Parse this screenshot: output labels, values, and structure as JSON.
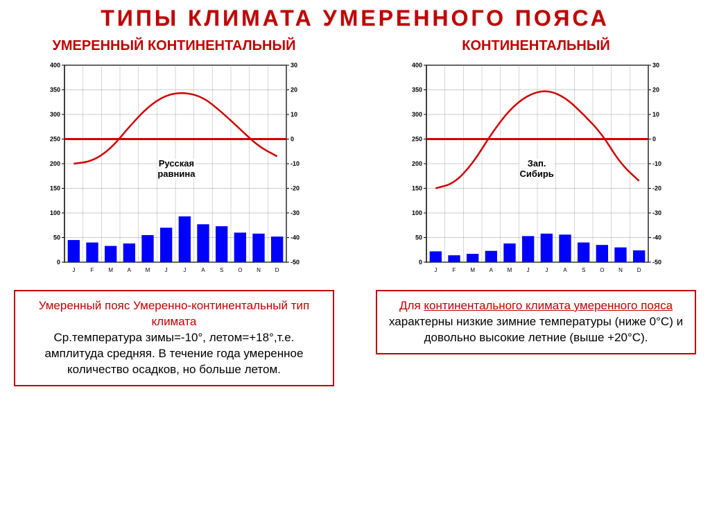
{
  "title": "ТИПЫ КЛИМАТА УМЕРЕННОГО ПОЯСА",
  "left": {
    "subtitle": "УМЕРЕННЫЙ  КОНТИНЕНТАЛЬНЫЙ",
    "chart": {
      "type": "climograph",
      "region_label": "Русская\nравнина",
      "months": [
        "J",
        "F",
        "M",
        "A",
        "M",
        "J",
        "J",
        "A",
        "S",
        "O",
        "N",
        "D"
      ],
      "precip_bars": [
        45,
        40,
        33,
        38,
        55,
        70,
        93,
        77,
        73,
        60,
        58,
        52
      ],
      "precip_bar_color": "#0000ff",
      "precip_ylim": [
        0,
        400
      ],
      "precip_ytick_step": 50,
      "temp_line": [
        -10,
        -9,
        -4,
        5,
        13,
        18,
        19,
        17,
        11,
        4,
        -3,
        -7
      ],
      "temp_line_color": "#d00000",
      "temp_ylim": [
        -50,
        30
      ],
      "temp_ytick_step": 10,
      "zero_line_color": "#d00000",
      "grid_color": "#999999",
      "axis_color": "#000000",
      "bg": "#ffffff",
      "font_size_axis": 8
    },
    "desc": {
      "title": "Умеренный  пояс Умеренно-континентальный тип климата",
      "body": "Ср.температура зимы=-10°, летом=+18°,т.е. амплитуда средняя.  В течение года умеренное количество осадков, но больше летом."
    }
  },
  "right": {
    "subtitle": "КОНТИНЕНТАЛЬНЫЙ",
    "chart": {
      "type": "climograph",
      "region_label": "Зап.\nСибирь",
      "months": [
        "J",
        "F",
        "M",
        "A",
        "M",
        "J",
        "J",
        "A",
        "S",
        "O",
        "N",
        "D"
      ],
      "precip_bars": [
        22,
        14,
        17,
        23,
        38,
        53,
        58,
        56,
        40,
        35,
        30,
        24
      ],
      "precip_bar_color": "#0000ff",
      "precip_ylim": [
        0,
        400
      ],
      "precip_ytick_step": 50,
      "temp_line": [
        -20,
        -18,
        -10,
        2,
        12,
        18,
        20,
        17,
        10,
        2,
        -10,
        -17
      ],
      "temp_line_color": "#d00000",
      "temp_ylim": [
        -50,
        30
      ],
      "temp_ytick_step": 10,
      "zero_line_color": "#d00000",
      "grid_color": "#999999",
      "axis_color": "#000000",
      "bg": "#ffffff",
      "font_size_axis": 8
    },
    "desc": {
      "title_html": "Для <span class='underline'>континентального климата умеренного пояса</span>",
      "body": " характерны низкие зимние температуры (ниже 0°С) и довольно высокие летние (выше +20°С)."
    }
  }
}
